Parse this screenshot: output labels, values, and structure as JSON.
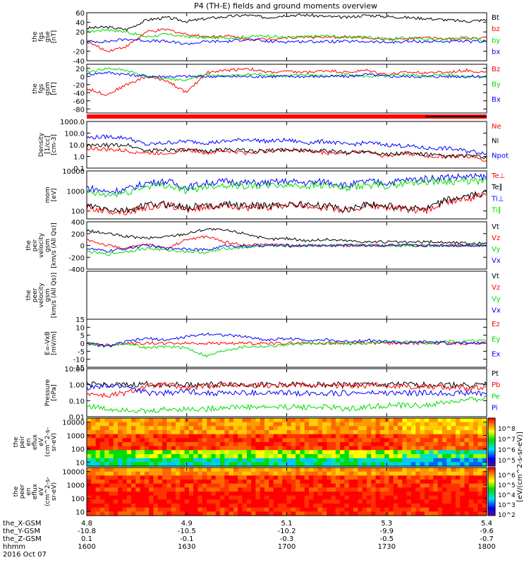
{
  "chart_data": {
    "type": "line",
    "title": "P4 (TH-E) fields and ground moments overview",
    "x": {
      "hhmm": [
        1600,
        1630,
        1700,
        1730,
        1800
      ]
    },
    "colors": {
      "black": "#000000",
      "red": "#ff0000",
      "green": "#00dd00",
      "blue": "#0000ff"
    },
    "panels": [
      {
        "id": "fgs-gse",
        "ylabel": [
          "the",
          "fgs",
          "gse",
          "[nT]"
        ],
        "ylim": [
          -40,
          60
        ],
        "ticks": [
          "60",
          "40",
          "20",
          "0",
          "-20",
          "-40"
        ],
        "tick_values": [
          60,
          40,
          20,
          0,
          -20,
          -40
        ],
        "series": [
          {
            "name": "Bt",
            "color": "black",
            "values": [
              28,
              30,
              25,
              45,
              50,
              42,
              48,
              52,
              55,
              50,
              55,
              55,
              52,
              50,
              55,
              52,
              50,
              48,
              45,
              42,
              45
            ]
          },
          {
            "name": "bz",
            "color": "red",
            "values": [
              0,
              -20,
              -10,
              20,
              25,
              15,
              10,
              12,
              5,
              5,
              8,
              10,
              8,
              10,
              8,
              5,
              5,
              8,
              5,
              5,
              8
            ]
          },
          {
            "name": "by",
            "color": "green",
            "values": [
              20,
              25,
              20,
              10,
              15,
              10,
              8,
              8,
              10,
              12,
              8,
              10,
              12,
              8,
              10,
              5,
              8,
              5,
              5,
              10,
              0
            ]
          },
          {
            "name": "bx",
            "color": "blue",
            "values": [
              0,
              0,
              5,
              2,
              0,
              -5,
              0,
              0,
              5,
              0,
              0,
              0,
              0,
              0,
              0,
              -2,
              0,
              0,
              0,
              0,
              0
            ]
          }
        ]
      },
      {
        "id": "fgs-gsm",
        "ylabel": [
          "the",
          "fgs",
          "gsm",
          "[nT]"
        ],
        "ylim": [
          -90,
          30
        ],
        "ticks": [
          "20",
          "0",
          "-20",
          "-40",
          "-60",
          "-80"
        ],
        "tick_values": [
          20,
          0,
          -20,
          -40,
          -60,
          -80
        ],
        "series": [
          {
            "name": "Bz",
            "color": "red",
            "values": [
              -30,
              -45,
              -20,
              0,
              -10,
              -40,
              10,
              15,
              20,
              10,
              12,
              10,
              15,
              10,
              15,
              5,
              10,
              10,
              10,
              15,
              10
            ]
          },
          {
            "name": "By",
            "color": "green",
            "values": [
              10,
              20,
              15,
              0,
              -5,
              -10,
              5,
              0,
              5,
              5,
              0,
              5,
              0,
              5,
              0,
              0,
              5,
              0,
              5,
              0,
              0
            ]
          },
          {
            "name": "Bx",
            "color": "blue",
            "values": [
              5,
              10,
              5,
              0,
              0,
              0,
              0,
              0,
              0,
              0,
              0,
              0,
              0,
              0,
              5,
              0,
              0,
              0,
              0,
              0,
              0
            ]
          }
        ]
      },
      {
        "id": "density",
        "ylabel": [
          "Density",
          "[1/cc]",
          "[cm-3]"
        ],
        "log": true,
        "ylim": [
          0.1,
          1000
        ],
        "ticks": [
          "1000.0",
          "100.0",
          "10.0",
          "1.0",
          "0.1"
        ],
        "tick_values": [
          1000,
          100,
          10,
          1,
          0.1
        ],
        "series": [
          {
            "name": "Ne",
            "color": "red",
            "values": [
              5,
              4,
              3,
              2,
              2,
              4,
              2,
              3,
              2,
              3,
              4,
              3,
              2,
              2,
              3,
              1,
              2,
              1,
              1,
              1,
              0.5
            ]
          },
          {
            "name": "Ni",
            "color": "black",
            "values": [
              8,
              9,
              10,
              3,
              4,
              3,
              3,
              4,
              3,
              3,
              4,
              3,
              3,
              2,
              3,
              1.5,
              2,
              1.5,
              1,
              1.2,
              0.8
            ]
          },
          {
            "name": "Npot",
            "color": "blue",
            "values": [
              40,
              50,
              40,
              10,
              15,
              20,
              15,
              20,
              30,
              20,
              25,
              15,
              20,
              10,
              15,
              10,
              8,
              5,
              5,
              3,
              2
            ]
          }
        ]
      },
      {
        "id": "temperature",
        "ylabel": [
          "mom",
          "[eV]"
        ],
        "log": true,
        "ylim": [
          40,
          10000
        ],
        "ticks": [
          "10000",
          "1000",
          "100"
        ],
        "tick_values": [
          10000,
          1000,
          100
        ],
        "series": [
          {
            "name": "Te⊥",
            "color": "red",
            "values": [
              150,
              100,
              90,
              150,
              200,
              120,
              150,
              200,
              150,
              150,
              200,
              180,
              150,
              100,
              200,
              150,
              120,
              100,
              300,
              400,
              700
            ]
          },
          {
            "name": "Te∥",
            "color": "black",
            "values": [
              180,
              120,
              100,
              200,
              220,
              150,
              180,
              220,
              180,
              180,
              220,
              200,
              180,
              120,
              220,
              180,
              150,
              120,
              350,
              500,
              800
            ]
          },
          {
            "name": "Ti⊥",
            "color": "blue",
            "values": [
              1500,
              900,
              1200,
              2500,
              3000,
              1500,
              2500,
              3000,
              2500,
              2500,
              3000,
              2500,
              3000,
              1800,
              3000,
              2500,
              3500,
              4000,
              5000,
              5000,
              5000
            ]
          },
          {
            "name": "Ti∥",
            "color": "green",
            "values": [
              800,
              600,
              800,
              1800,
              2000,
              1000,
              1800,
              2000,
              1800,
              1800,
              2000,
              1800,
              2000,
              1200,
              2000,
              1800,
              2500,
              3000,
              3000,
              3000,
              3000
            ]
          }
        ]
      },
      {
        "id": "velocity",
        "ylabel": [
          "the",
          "peir",
          "velocity",
          "gsm",
          "[km/s (All Qs)]"
        ],
        "ylim": [
          -400,
          400
        ],
        "ticks": [
          "400",
          "200",
          "0",
          "-200",
          "-400"
        ],
        "tick_values": [
          400,
          200,
          0,
          -200,
          -400
        ],
        "series": [
          {
            "name": "Vt",
            "color": "black",
            "values": [
              250,
              200,
              150,
              120,
              150,
              200,
              280,
              250,
              200,
              100,
              120,
              80,
              100,
              80,
              60,
              60,
              50,
              60,
              50,
              40,
              30
            ]
          },
          {
            "name": "Vz",
            "color": "red",
            "values": [
              100,
              0,
              -50,
              20,
              -50,
              100,
              150,
              50,
              0,
              20,
              0,
              0,
              0,
              0,
              0,
              0,
              0,
              0,
              0,
              0,
              0
            ]
          },
          {
            "name": "Vy",
            "color": "green",
            "values": [
              -100,
              -150,
              -100,
              -50,
              -80,
              -100,
              -120,
              -50,
              -30,
              0,
              -20,
              0,
              0,
              0,
              0,
              0,
              0,
              0,
              0,
              0,
              0
            ]
          },
          {
            "name": "Vx",
            "color": "blue",
            "values": [
              -50,
              -100,
              -50,
              0,
              -50,
              -50,
              -80,
              0,
              -20,
              0,
              0,
              0,
              0,
              0,
              0,
              0,
              0,
              0,
              0,
              0,
              0
            ]
          }
        ]
      },
      {
        "id": "peer-velocity",
        "ylabel": [
          "the",
          "peer",
          "velocity",
          "gsm",
          "[km/s (All Qs)]"
        ],
        "ylim": [
          -1,
          1
        ],
        "ticks": [],
        "tick_values": [],
        "series": [
          {
            "name": "Vt",
            "color": "black",
            "values": []
          },
          {
            "name": "Vz",
            "color": "red",
            "values": []
          },
          {
            "name": "Vy",
            "color": "green",
            "values": []
          },
          {
            "name": "Vx",
            "color": "blue",
            "values": []
          }
        ]
      },
      {
        "id": "efield",
        "ylabel": [
          "E=-VxB",
          "[mV/m]"
        ],
        "ylim": [
          -15,
          15
        ],
        "ticks": [
          "15",
          "10",
          "5",
          "0",
          "-5",
          "-10",
          "-15"
        ],
        "tick_values": [
          15,
          10,
          5,
          0,
          -5,
          -10,
          -15
        ],
        "series": [
          {
            "name": "Ez",
            "color": "red",
            "values": [
              0,
              -1,
              0,
              0,
              0,
              0,
              0,
              0,
              0,
              0,
              0,
              0,
              0,
              0,
              0,
              0,
              0,
              0,
              0,
              0,
              0
            ]
          },
          {
            "name": "Ey",
            "color": "green",
            "values": [
              0,
              -2,
              0,
              -3,
              -2,
              -3,
              -8,
              -4,
              -2,
              -2,
              -1,
              0,
              0,
              0,
              0,
              1,
              1,
              0,
              1,
              1,
              2
            ]
          },
          {
            "name": "Ex",
            "color": "blue",
            "values": [
              0,
              -2,
              1,
              3,
              2,
              4,
              6,
              5,
              4,
              2,
              3,
              2,
              2,
              1,
              2,
              1,
              0,
              1,
              0,
              0,
              0
            ]
          }
        ]
      },
      {
        "id": "pressure",
        "ylabel": [
          "Pressure",
          "[nPa]"
        ],
        "log": true,
        "ylim": [
          0.01,
          10
        ],
        "ticks": [
          "10.00",
          "1.00",
          "0.10",
          "0.01"
        ],
        "tick_values": [
          10,
          1,
          0.1,
          0.01
        ],
        "series": [
          {
            "name": "Pt",
            "color": "black",
            "values": [
              1.0,
              1.0,
              0.9,
              1.1,
              1.0,
              1.0,
              1.0,
              1.1,
              1.0,
              1.0,
              1.0,
              1.0,
              1.0,
              1.0,
              1.0,
              1.0,
              1.0,
              1.0,
              1.0,
              1.0,
              1.0
            ]
          },
          {
            "name": "Pb",
            "color": "red",
            "values": [
              0.3,
              0.2,
              0.3,
              0.8,
              1.0,
              0.6,
              0.8,
              1.0,
              0.9,
              0.9,
              1.0,
              1.0,
              0.9,
              0.8,
              0.9,
              0.9,
              0.8,
              0.8,
              0.7,
              0.6,
              0.8
            ]
          },
          {
            "name": "Pe",
            "color": "green",
            "values": [
              0.05,
              0.03,
              0.03,
              0.02,
              0.03,
              0.03,
              0.03,
              0.04,
              0.04,
              0.04,
              0.04,
              0.04,
              0.04,
              0.03,
              0.04,
              0.05,
              0.05,
              0.05,
              0.08,
              0.1,
              0.15
            ]
          },
          {
            "name": "Pi",
            "color": "blue",
            "values": [
              0.6,
              0.8,
              0.8,
              0.3,
              0.3,
              0.4,
              0.3,
              0.3,
              0.3,
              0.3,
              0.3,
              0.3,
              0.3,
              0.3,
              0.3,
              0.3,
              0.3,
              0.3,
              0.3,
              0.3,
              0.3
            ]
          }
        ]
      },
      {
        "id": "peir-spec",
        "type": "heatmap",
        "ylabel": [
          "the",
          "peir",
          "en",
          "eflux",
          "eV",
          "(cm^2-s-",
          "sr-eV)"
        ],
        "log": true,
        "ylim": [
          5,
          20000
        ],
        "ticks": [
          "10000",
          "1000",
          "100",
          "10"
        ],
        "tick_values": [
          10000,
          1000,
          100,
          10
        ]
      },
      {
        "id": "peer-spec",
        "type": "heatmap",
        "ylabel": [
          "the",
          "peer",
          "en",
          "eflux",
          "eV",
          "(cm^2-s-",
          "sr-eV)"
        ],
        "log": true,
        "ylim": [
          5,
          20000
        ],
        "ticks": [
          "10000",
          "1000",
          "100",
          "10"
        ],
        "tick_values": [
          10000,
          1000,
          100,
          10
        ]
      }
    ],
    "colorbar": {
      "label": "[eV/(cm^2-s-sr-eV)]",
      "ticks_top": [
        "10^8",
        "10^7",
        "10^6",
        "10^5"
      ],
      "ticks_bottom": [
        "10^6",
        "10^5",
        "10^4",
        "10^3",
        "10^2"
      ]
    },
    "x_axis_table": {
      "rows": [
        {
          "label": "the_X-GSM",
          "values": [
            "4.8",
            "4.9",
            "5.1",
            "5.3",
            "5.4"
          ]
        },
        {
          "label": "the_Y-GSM",
          "values": [
            "-10.8",
            "-10.5",
            "-10.2",
            "-9.9",
            "-9.6"
          ]
        },
        {
          "label": "the_Z-GSM",
          "values": [
            "0.1",
            "-0.1",
            "-0.3",
            "-0.5",
            "-0.7"
          ]
        },
        {
          "label": "hhmm",
          "values": [
            "1600",
            "1630",
            "1700",
            "1730",
            "1800"
          ]
        }
      ],
      "date": "2016 Oct 07"
    }
  }
}
